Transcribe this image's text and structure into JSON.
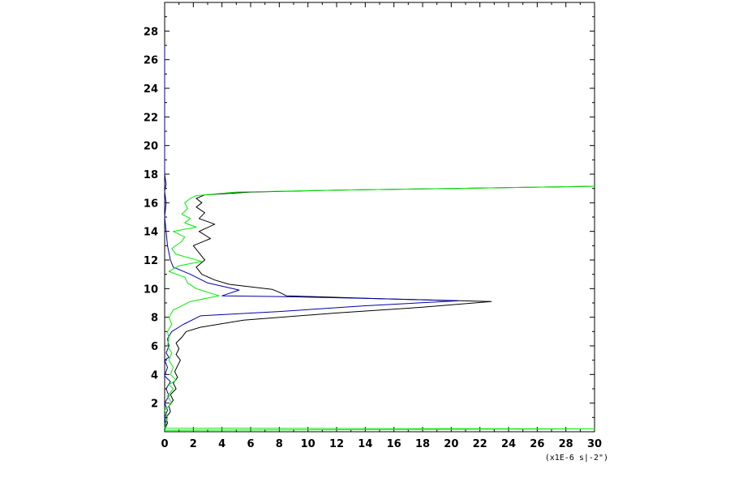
{
  "chart_data": {
    "type": "line",
    "title": "",
    "xlabel": "",
    "ylabel": "",
    "x_unit_label": "(x1E-6 s|-2\")",
    "xlim": [
      0,
      30
    ],
    "ylim": [
      0,
      30
    ],
    "x_ticks": [
      0,
      2,
      4,
      6,
      8,
      10,
      12,
      14,
      16,
      18,
      20,
      22,
      24,
      26,
      28,
      30
    ],
    "y_ticks": [
      2,
      4,
      6,
      8,
      10,
      12,
      14,
      16,
      18,
      20,
      22,
      24,
      26,
      28
    ],
    "grid": false,
    "legend": "none",
    "series": [
      {
        "color": "#000000",
        "points": [
          [
            0,
            0.2
          ],
          [
            0.2,
            0.6
          ],
          [
            0.1,
            1.0
          ],
          [
            0.4,
            1.4
          ],
          [
            0.3,
            1.8
          ],
          [
            0.6,
            2.2
          ],
          [
            0.4,
            2.6
          ],
          [
            0.8,
            3.0
          ],
          [
            0.6,
            3.4
          ],
          [
            0.9,
            3.8
          ],
          [
            0.7,
            4.2
          ],
          [
            0.9,
            4.6
          ],
          [
            1.1,
            5.0
          ],
          [
            0.8,
            5.4
          ],
          [
            1.0,
            5.8
          ],
          [
            0.8,
            6.2
          ],
          [
            1.2,
            6.6
          ],
          [
            1.5,
            7.0
          ],
          [
            2.5,
            7.3
          ],
          [
            5.5,
            7.8
          ],
          [
            12.0,
            8.3
          ],
          [
            18.0,
            8.7
          ],
          [
            22.8,
            9.1
          ],
          [
            15.0,
            9.3
          ],
          [
            8.5,
            9.5
          ],
          [
            8.0,
            9.75
          ],
          [
            7.5,
            9.95
          ],
          [
            4.5,
            10.3
          ],
          [
            3.5,
            10.6
          ],
          [
            2.6,
            11.0
          ],
          [
            2.2,
            11.5
          ],
          [
            2.8,
            12.0
          ],
          [
            2.4,
            12.5
          ],
          [
            2.0,
            13.0
          ],
          [
            3.2,
            13.5
          ],
          [
            2.4,
            14.0
          ],
          [
            3.5,
            14.5
          ],
          [
            2.4,
            14.9
          ],
          [
            2.8,
            15.3
          ],
          [
            2.2,
            15.7
          ],
          [
            2.6,
            16.0
          ],
          [
            2.2,
            16.3
          ],
          [
            2.8,
            16.55
          ],
          [
            6.0,
            16.75
          ],
          [
            12.0,
            16.88
          ],
          [
            20.0,
            17.0
          ],
          [
            30.0,
            17.15
          ]
        ]
      },
      {
        "color": "#0000aa",
        "points": [
          [
            0,
            0.1
          ],
          [
            0.1,
            0.5
          ],
          [
            0,
            1.0
          ],
          [
            0.2,
            1.5
          ],
          [
            0,
            2.0
          ],
          [
            0.3,
            2.5
          ],
          [
            0.1,
            3.0
          ],
          [
            0.4,
            3.5
          ],
          [
            0,
            3.9
          ],
          [
            0.2,
            4.5
          ],
          [
            0,
            5.0
          ],
          [
            0.3,
            5.2
          ],
          [
            0.1,
            5.5
          ],
          [
            0.3,
            6.0
          ],
          [
            0.2,
            6.5
          ],
          [
            0.5,
            7.0
          ],
          [
            1.3,
            7.5
          ],
          [
            2.5,
            8.1
          ],
          [
            8.0,
            8.4
          ],
          [
            14.0,
            8.8
          ],
          [
            20.5,
            9.15
          ],
          [
            15.0,
            9.3
          ],
          [
            8.0,
            9.45
          ],
          [
            4.0,
            9.5
          ],
          [
            5.2,
            9.9
          ],
          [
            3.0,
            10.4
          ],
          [
            1.8,
            11.0
          ],
          [
            0.6,
            11.5
          ],
          [
            0.4,
            12.0
          ],
          [
            0.2,
            13.0
          ],
          [
            0.1,
            14.0
          ],
          [
            0,
            15.0
          ],
          [
            0.1,
            16.0
          ],
          [
            0,
            16.8
          ],
          [
            0.1,
            17.3
          ],
          [
            0,
            18.0
          ],
          [
            0,
            22.0
          ],
          [
            0,
            27.0
          ]
        ]
      },
      {
        "color": "#00ee00",
        "points": [
          [
            0,
            0.1
          ],
          [
            30,
            0.2
          ],
          [
            0,
            0.25
          ],
          [
            0.2,
            1.0
          ],
          [
            0,
            1.5
          ],
          [
            0.5,
            2.0
          ],
          [
            0.2,
            2.5
          ],
          [
            0.6,
            3.0
          ],
          [
            0.3,
            3.3
          ],
          [
            0.8,
            3.6
          ],
          [
            0.4,
            4.0
          ],
          [
            0.6,
            4.5
          ],
          [
            0.3,
            5.0
          ],
          [
            0.5,
            5.5
          ],
          [
            0.2,
            6.0
          ],
          [
            0.3,
            6.5
          ],
          [
            0.2,
            7.0
          ],
          [
            0.5,
            7.5
          ],
          [
            0.3,
            8.0
          ],
          [
            0.6,
            8.5
          ],
          [
            1.8,
            9.1
          ],
          [
            3.8,
            9.5
          ],
          [
            2.2,
            10.0
          ],
          [
            1.6,
            10.4
          ],
          [
            1.4,
            10.8
          ],
          [
            0.3,
            11.2
          ],
          [
            1.0,
            11.6
          ],
          [
            2.6,
            11.9
          ],
          [
            0.8,
            12.4
          ],
          [
            0.5,
            12.8
          ],
          [
            1.2,
            13.3
          ],
          [
            1.4,
            13.6
          ],
          [
            0.6,
            14.0
          ],
          [
            2.2,
            14.3
          ],
          [
            1.4,
            14.6
          ],
          [
            1.8,
            14.9
          ],
          [
            1.2,
            15.2
          ],
          [
            1.6,
            15.6
          ],
          [
            1.4,
            16.0
          ],
          [
            1.8,
            16.3
          ],
          [
            2.2,
            16.5
          ],
          [
            5.0,
            16.75
          ],
          [
            12.0,
            16.88
          ],
          [
            20.0,
            17.0
          ],
          [
            30.0,
            17.15
          ]
        ]
      }
    ]
  }
}
